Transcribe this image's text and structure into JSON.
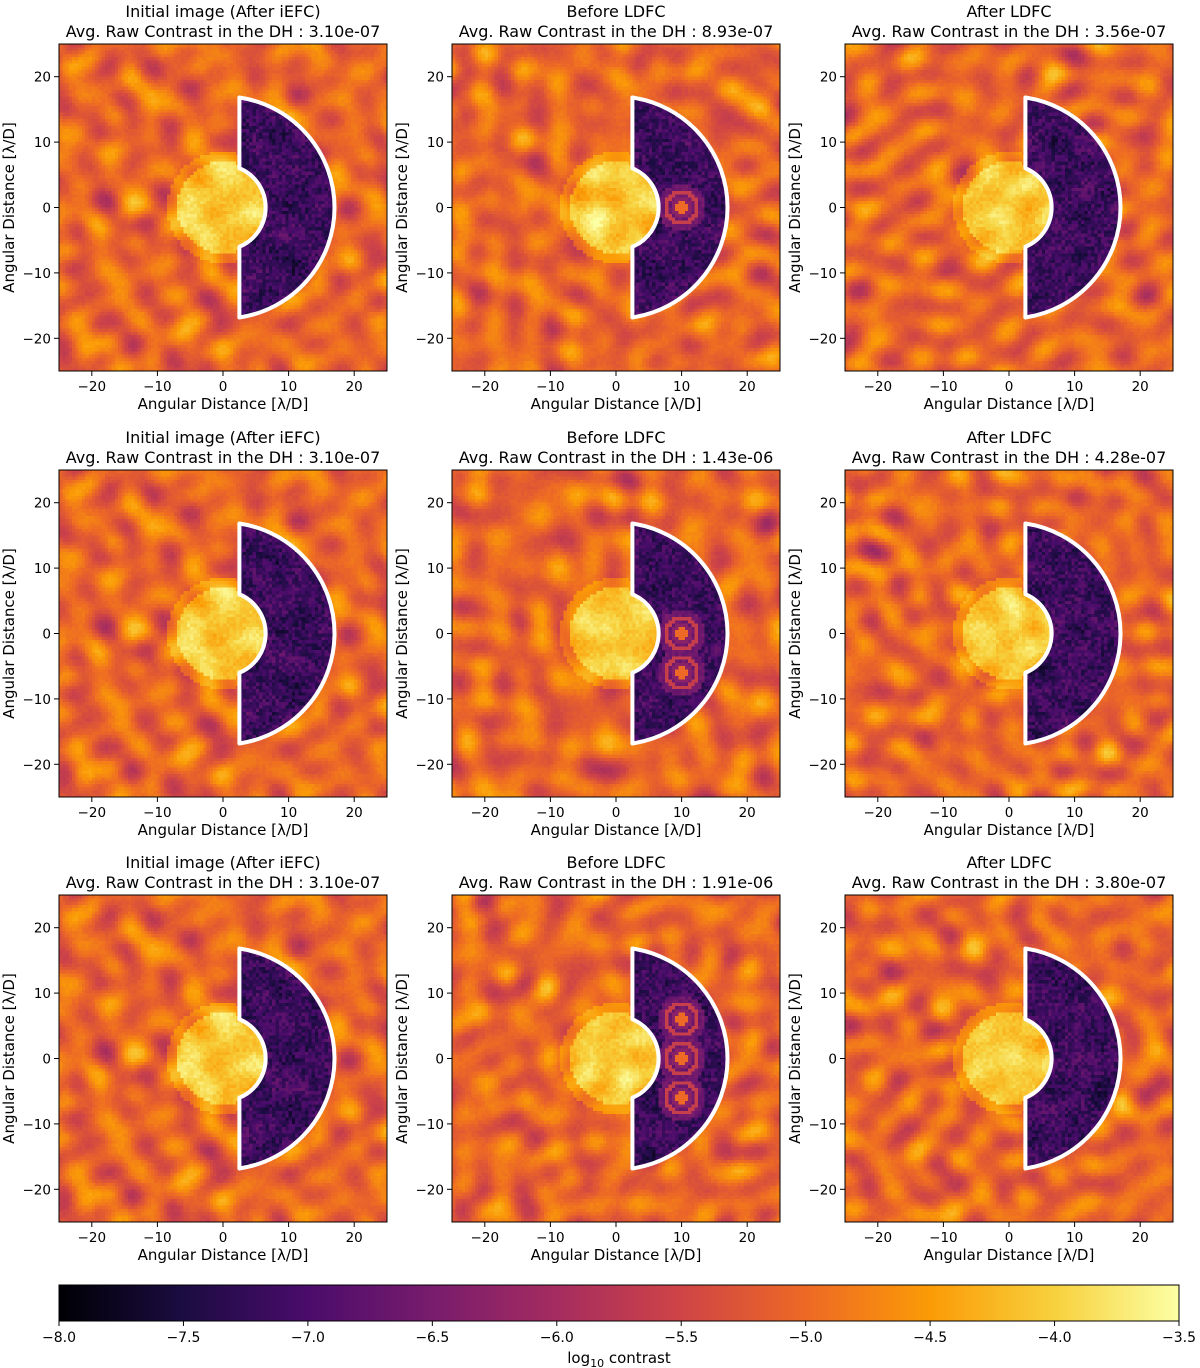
{
  "colors": {
    "colormap": "inferno",
    "colormap_stops": [
      "#000004",
      "#1b0c41",
      "#4a0c6b",
      "#781c6d",
      "#a52c60",
      "#cf4446",
      "#ed6925",
      "#fb9b06",
      "#f7d13d",
      "#fcffa4"
    ],
    "dark_hole_outline": "#ffffff"
  },
  "chart_data": {
    "type": "heatmap",
    "grid": {
      "rows": 3,
      "cols": 3
    },
    "shared_axes": {
      "xlabel": "Angular Distance [λ/D]",
      "ylabel": "Angular Distance [λ/D]",
      "xlim": [
        -25,
        25
      ],
      "ylim": [
        -25,
        25
      ],
      "x_ticks": [
        -20,
        -10,
        0,
        10,
        20
      ],
      "x_tick_labels": [
        "−20",
        "−10",
        "0",
        "10",
        "20"
      ],
      "y_ticks": [
        -20,
        -10,
        0,
        10,
        20
      ],
      "y_tick_labels": [
        "−20",
        "−10",
        "0",
        "10",
        "20"
      ]
    },
    "dark_hole": {
      "shape": "half annulus (right side)",
      "inner_radius": 6.5,
      "outer_radius": 17,
      "x_min": 2.5
    },
    "panels": [
      {
        "row": 0,
        "col": 0,
        "title": [
          "Initial image (After iEFC)",
          "Avg. Raw Contrast in the DH : 3.10e-07"
        ],
        "avg_raw_contrast": 3.1e-07,
        "satellite_spots": []
      },
      {
        "row": 0,
        "col": 1,
        "title": [
          "Before LDFC",
          "Avg. Raw Contrast in the DH : 8.93e-07"
        ],
        "avg_raw_contrast": 8.93e-07,
        "satellite_spots": [
          [
            10,
            0
          ]
        ]
      },
      {
        "row": 0,
        "col": 2,
        "title": [
          "After LDFC",
          "Avg. Raw Contrast in the DH : 3.56e-07"
        ],
        "avg_raw_contrast": 3.56e-07,
        "satellite_spots": []
      },
      {
        "row": 1,
        "col": 0,
        "title": [
          "Initial image (After iEFC)",
          "Avg. Raw Contrast in the DH : 3.10e-07"
        ],
        "avg_raw_contrast": 3.1e-07,
        "satellite_spots": []
      },
      {
        "row": 1,
        "col": 1,
        "title": [
          "Before LDFC",
          "Avg. Raw Contrast in the DH : 1.43e-06"
        ],
        "avg_raw_contrast": 1.43e-06,
        "satellite_spots": [
          [
            10,
            0
          ],
          [
            10,
            -6
          ]
        ]
      },
      {
        "row": 1,
        "col": 2,
        "title": [
          "After LDFC",
          "Avg. Raw Contrast in the DH : 4.28e-07"
        ],
        "avg_raw_contrast": 4.28e-07,
        "satellite_spots": []
      },
      {
        "row": 2,
        "col": 0,
        "title": [
          "Initial image (After iEFC)",
          "Avg. Raw Contrast in the DH : 3.10e-07"
        ],
        "avg_raw_contrast": 3.1e-07,
        "satellite_spots": []
      },
      {
        "row": 2,
        "col": 1,
        "title": [
          "Before LDFC",
          "Avg. Raw Contrast in the DH : 1.91e-06"
        ],
        "avg_raw_contrast": 1.91e-06,
        "satellite_spots": [
          [
            10,
            6
          ],
          [
            10,
            0
          ],
          [
            10,
            -6
          ]
        ]
      },
      {
        "row": 2,
        "col": 2,
        "title": [
          "After LDFC",
          "Avg. Raw Contrast in the DH : 3.80e-07"
        ],
        "avg_raw_contrast": 3.8e-07,
        "satellite_spots": []
      }
    ],
    "colorbar": {
      "label": "log10 contrast",
      "label_base": "log",
      "label_subscript": "10",
      "label_rest": " contrast",
      "range": [
        -8.0,
        -3.5
      ],
      "ticks": [
        -8.0,
        -7.5,
        -7.0,
        -6.5,
        -6.0,
        -5.5,
        -5.0,
        -4.5,
        -4.0,
        -3.5
      ],
      "tick_labels": [
        "−8.0",
        "−7.5",
        "−7.0",
        "−6.5",
        "−6.0",
        "−5.5",
        "−5.0",
        "−4.5",
        "−4.0",
        "−3.5"
      ],
      "orientation": "horizontal",
      "placement": "bottom"
    }
  }
}
